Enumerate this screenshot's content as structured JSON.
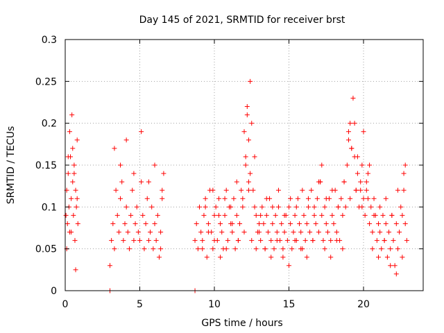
{
  "chart_data": {
    "type": "scatter",
    "title": "Day 145 of 2021, SRMTID for receiver brst",
    "xlabel": "GPS time / hours",
    "ylabel": "SRMTID / TECUs",
    "xlim": [
      0,
      24
    ],
    "ylim": [
      0,
      0.3
    ],
    "xticks": [
      0,
      5,
      10,
      15,
      20
    ],
    "xtick_labels": [
      "0",
      "5",
      "10",
      "15",
      "20"
    ],
    "yticks": [
      0,
      0.05,
      0.1,
      0.15,
      0.2,
      0.25,
      0.3
    ],
    "ytick_labels": [
      "0",
      "0.05",
      "0.1",
      "0.15",
      "0.2",
      "0.25",
      "0.3"
    ],
    "grid": true,
    "marker": "plus",
    "color": "#ff0000",
    "series": [
      {
        "name": "SRMTID",
        "x": [
          0.05,
          0.1,
          0.15,
          0.2,
          0.25,
          0.3,
          0.35,
          0.4,
          0.45,
          0.5,
          0.55,
          0.6,
          0.65,
          0.7,
          0.75,
          0.8,
          0.85,
          0.1,
          0.2,
          0.3,
          0.4,
          0.5,
          0.6,
          0.7,
          0.8,
          3.0,
          3.1,
          3.2,
          3.3,
          3.4,
          3.5,
          3.6,
          3.7,
          3.8,
          3.9,
          4.0,
          4.1,
          4.2,
          4.3,
          4.4,
          4.5,
          4.6,
          4.7,
          4.8,
          4.9,
          5.0,
          5.1,
          5.2,
          5.3,
          5.4,
          5.5,
          5.6,
          5.7,
          5.8,
          5.9,
          6.0,
          6.1,
          6.2,
          6.3,
          6.4,
          6.5,
          3.3,
          3.7,
          4.1,
          4.6,
          5.1,
          5.6,
          6.0,
          6.4,
          6.6,
          6.5,
          8.7,
          8.8,
          8.9,
          9.0,
          9.1,
          9.2,
          9.3,
          9.4,
          9.5,
          9.6,
          9.7,
          9.8,
          9.9,
          10.0,
          10.1,
          10.2,
          10.3,
          10.4,
          10.5,
          10.6,
          10.7,
          10.8,
          10.9,
          11.0,
          11.1,
          11.2,
          11.3,
          11.4,
          11.5,
          11.6,
          11.7,
          11.8,
          11.9,
          12.0,
          12.1,
          12.2,
          12.3,
          12.4,
          12.5,
          12.6,
          12.7,
          12.8,
          12.9,
          13.0,
          13.1,
          13.2,
          13.3,
          13.4,
          13.5,
          13.6,
          13.7,
          13.8,
          13.9,
          14.0,
          14.1,
          14.2,
          14.3,
          14.4,
          14.5,
          14.6,
          14.7,
          14.8,
          14.9,
          15.0,
          15.1,
          15.2,
          15.3,
          15.4,
          15.5,
          15.6,
          15.7,
          15.8,
          15.9,
          16.0,
          16.1,
          16.2,
          16.3,
          16.4,
          16.5,
          16.6,
          16.7,
          16.8,
          16.9,
          17.0,
          17.1,
          17.2,
          17.3,
          17.4,
          17.5,
          17.6,
          17.7,
          17.8,
          17.9,
          18.0,
          18.1,
          18.2,
          18.3,
          18.4,
          18.5,
          18.6,
          18.7,
          18.8,
          18.9,
          19.0,
          19.1,
          19.2,
          19.3,
          19.4,
          19.5,
          19.6,
          19.7,
          19.8,
          19.9,
          20.0,
          20.1,
          20.2,
          20.3,
          20.4,
          20.5,
          20.6,
          20.7,
          20.8,
          20.9,
          21.0,
          21.1,
          21.2,
          21.3,
          21.4,
          21.5,
          21.6,
          21.7,
          21.8,
          21.9,
          22.0,
          22.1,
          22.2,
          22.3,
          22.4,
          22.5,
          22.6,
          22.7,
          22.8,
          22.9,
          9.2,
          9.6,
          10.0,
          10.4,
          10.8,
          11.2,
          11.6,
          12.0,
          12.2,
          12.3,
          12.1,
          12.4,
          12.5,
          12.8,
          13.0,
          13.4,
          13.8,
          14.2,
          14.6,
          15.0,
          15.4,
          15.8,
          16.2,
          16.6,
          17.0,
          17.2,
          17.4,
          17.8,
          18.2,
          18.6,
          19.0,
          19.2,
          19.4,
          19.6,
          19.8,
          20.0,
          20.2,
          20.4,
          20.6,
          21.0,
          21.4,
          21.8,
          22.2,
          22.6,
          22.8,
          9.4,
          9.9,
          10.3,
          10.7,
          11.1,
          11.5,
          11.9,
          12.3,
          12.7,
          13.1,
          13.5,
          13.9,
          14.3,
          14.7,
          15.1,
          15.5,
          15.9,
          16.3,
          16.7,
          17.1,
          17.5,
          17.9,
          18.3,
          18.7,
          19.1,
          19.5,
          19.9,
          20.3,
          20.7,
          21.1,
          21.5,
          21.9,
          22.3,
          22.7,
          3.0,
          8.7
        ],
        "y": [
          0.09,
          0.12,
          0.08,
          0.14,
          0.1,
          0.07,
          0.16,
          0.11,
          0.21,
          0.13,
          0.09,
          0.15,
          0.06,
          0.12,
          0.1,
          0.18,
          0.08,
          0.05,
          0.16,
          0.19,
          0.07,
          0.17,
          0.14,
          0.025,
          0.11,
          0.03,
          0.06,
          0.08,
          0.05,
          0.12,
          0.09,
          0.07,
          0.11,
          0.13,
          0.06,
          0.08,
          0.1,
          0.07,
          0.05,
          0.09,
          0.12,
          0.06,
          0.08,
          0.1,
          0.07,
          0.06,
          0.13,
          0.09,
          0.05,
          0.08,
          0.11,
          0.06,
          0.07,
          0.1,
          0.05,
          0.08,
          0.06,
          0.09,
          0.04,
          0.07,
          0.11,
          0.17,
          0.15,
          0.18,
          0.14,
          0.19,
          0.13,
          0.15,
          0.05,
          0.14,
          0.12,
          0.06,
          0.08,
          0.05,
          0.1,
          0.07,
          0.06,
          0.09,
          0.11,
          0.04,
          0.08,
          0.12,
          0.07,
          0.05,
          0.09,
          0.1,
          0.06,
          0.11,
          0.08,
          0.07,
          0.05,
          0.09,
          0.12,
          0.06,
          0.1,
          0.08,
          0.07,
          0.11,
          0.05,
          0.09,
          0.06,
          0.08,
          0.12,
          0.1,
          0.07,
          0.15,
          0.22,
          0.18,
          0.25,
          0.2,
          0.12,
          0.16,
          0.09,
          0.07,
          0.08,
          0.06,
          0.1,
          0.08,
          0.05,
          0.09,
          0.07,
          0.11,
          0.06,
          0.08,
          0.05,
          0.09,
          0.07,
          0.1,
          0.06,
          0.08,
          0.04,
          0.07,
          0.09,
          0.06,
          0.1,
          0.08,
          0.05,
          0.07,
          0.09,
          0.06,
          0.11,
          0.08,
          0.07,
          0.05,
          0.09,
          0.06,
          0.08,
          0.1,
          0.07,
          0.12,
          0.06,
          0.09,
          0.08,
          0.11,
          0.07,
          0.13,
          0.09,
          0.06,
          0.1,
          0.08,
          0.07,
          0.11,
          0.06,
          0.09,
          0.08,
          0.12,
          0.07,
          0.1,
          0.06,
          0.11,
          0.09,
          0.13,
          0.1,
          0.15,
          0.18,
          0.2,
          0.17,
          0.23,
          0.16,
          0.12,
          0.14,
          0.1,
          0.13,
          0.15,
          0.11,
          0.09,
          0.12,
          0.14,
          0.08,
          0.1,
          0.07,
          0.11,
          0.09,
          0.06,
          0.08,
          0.07,
          0.05,
          0.09,
          0.06,
          0.08,
          0.04,
          0.07,
          0.05,
          0.09,
          0.06,
          0.03,
          0.08,
          0.05,
          0.07,
          0.1,
          0.09,
          0.12,
          0.08,
          0.06,
          0.05,
          0.07,
          0.06,
          0.04,
          0.05,
          0.08,
          0.06,
          0.19,
          0.21,
          0.13,
          0.16,
          0.14,
          0.06,
          0.05,
          0.07,
          0.05,
          0.04,
          0.06,
          0.05,
          0.03,
          0.06,
          0.05,
          0.04,
          0.06,
          0.13,
          0.15,
          0.05,
          0.04,
          0.06,
          0.05,
          0.19,
          0.17,
          0.2,
          0.16,
          0.12,
          0.19,
          0.13,
          0.15,
          0.05,
          0.04,
          0.06,
          0.03,
          0.02,
          0.04,
          0.15,
          0.1,
          0.12,
          0.09,
          0.11,
          0.1,
          0.13,
          0.11,
          0.12,
          0.1,
          0.09,
          0.11,
          0.1,
          0.12,
          0.09,
          0.11,
          0.1,
          0.12,
          0.11,
          0.1,
          0.13,
          0.11,
          0.12,
          0.1,
          0.13,
          0.11,
          0.12,
          0.1,
          0.11,
          0.09,
          0.1,
          0.11,
          0.09,
          0.12,
          0.14,
          0.0,
          0.0
        ]
      }
    ]
  }
}
